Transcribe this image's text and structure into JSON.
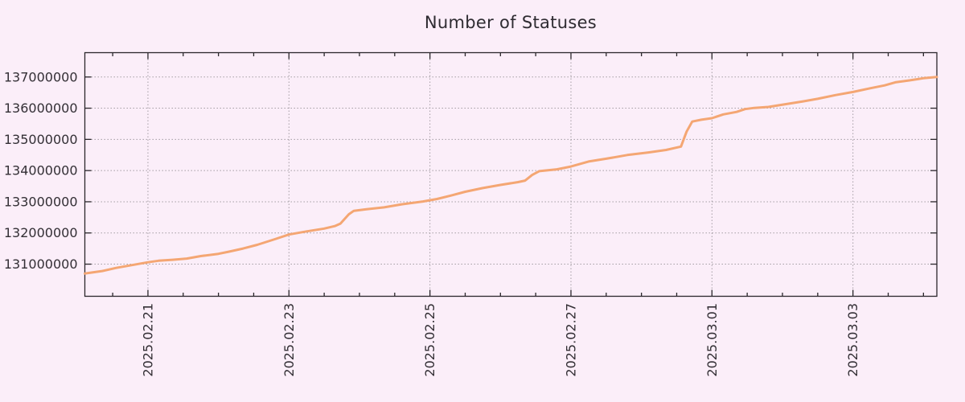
{
  "chart_data": {
    "type": "line",
    "title": "Number of Statuses",
    "grid": true,
    "legend": "none",
    "x_axis": {
      "label": "",
      "unit": "date",
      "epoch_note": "day 0 = 2025-02-20 00:00",
      "range_days": [
        0.105,
        12.19
      ],
      "major_ticks": [
        {
          "day": 1,
          "label": "2025.02.21"
        },
        {
          "day": 3,
          "label": "2025.02.23"
        },
        {
          "day": 5,
          "label": "2025.02.25"
        },
        {
          "day": 7,
          "label": "2025.02.27"
        },
        {
          "day": 9,
          "label": "2025.03.01"
        },
        {
          "day": 11,
          "label": "2025.03.03"
        }
      ],
      "minor_tick_interval_days": 0.5,
      "tick_label_rotation_deg": -90
    },
    "y_axis": {
      "label": "",
      "range": [
        129970000,
        137780000
      ],
      "major_ticks": [
        {
          "value": 131000000,
          "label": "131000000"
        },
        {
          "value": 132000000,
          "label": "132000000"
        },
        {
          "value": 133000000,
          "label": "133000000"
        },
        {
          "value": 134000000,
          "label": "134000000"
        },
        {
          "value": 135000000,
          "label": "135000000"
        },
        {
          "value": 136000000,
          "label": "136000000"
        },
        {
          "value": 137000000,
          "label": "137000000"
        }
      ]
    },
    "series": [
      {
        "name": "statuses",
        "points": [
          [
            0.105,
            130700000
          ],
          [
            0.2,
            130730000
          ],
          [
            0.35,
            130780000
          ],
          [
            0.55,
            130880000
          ],
          [
            0.8,
            130980000
          ],
          [
            1.0,
            131060000
          ],
          [
            1.15,
            131110000
          ],
          [
            1.35,
            131140000
          ],
          [
            1.55,
            131180000
          ],
          [
            1.75,
            131260000
          ],
          [
            2.0,
            131330000
          ],
          [
            2.15,
            131400000
          ],
          [
            2.35,
            131500000
          ],
          [
            2.55,
            131620000
          ],
          [
            2.8,
            131800000
          ],
          [
            3.0,
            131950000
          ],
          [
            3.25,
            132050000
          ],
          [
            3.5,
            132140000
          ],
          [
            3.65,
            132220000
          ],
          [
            3.73,
            132300000
          ],
          [
            3.85,
            132600000
          ],
          [
            3.92,
            132710000
          ],
          [
            4.1,
            132760000
          ],
          [
            4.35,
            132820000
          ],
          [
            4.6,
            132920000
          ],
          [
            4.9,
            133010000
          ],
          [
            5.1,
            133090000
          ],
          [
            5.3,
            133200000
          ],
          [
            5.5,
            133320000
          ],
          [
            5.75,
            133440000
          ],
          [
            6.0,
            133540000
          ],
          [
            6.25,
            133630000
          ],
          [
            6.35,
            133680000
          ],
          [
            6.45,
            133860000
          ],
          [
            6.55,
            133980000
          ],
          [
            6.8,
            134040000
          ],
          [
            7.0,
            134130000
          ],
          [
            7.25,
            134290000
          ],
          [
            7.5,
            134380000
          ],
          [
            7.8,
            134500000
          ],
          [
            8.1,
            134580000
          ],
          [
            8.35,
            134660000
          ],
          [
            8.56,
            134770000
          ],
          [
            8.64,
            135250000
          ],
          [
            8.72,
            135570000
          ],
          [
            8.85,
            135630000
          ],
          [
            9.0,
            135680000
          ],
          [
            9.16,
            135800000
          ],
          [
            9.35,
            135880000
          ],
          [
            9.47,
            135970000
          ],
          [
            9.6,
            136010000
          ],
          [
            9.8,
            136040000
          ],
          [
            10.05,
            136130000
          ],
          [
            10.3,
            136220000
          ],
          [
            10.5,
            136300000
          ],
          [
            10.75,
            136420000
          ],
          [
            11.0,
            136520000
          ],
          [
            11.25,
            136640000
          ],
          [
            11.45,
            136730000
          ],
          [
            11.6,
            136830000
          ],
          [
            11.8,
            136890000
          ],
          [
            12.0,
            136960000
          ],
          [
            12.19,
            137000000
          ]
        ]
      }
    ],
    "colors": {
      "line": "#f4a673",
      "background": "#fbeef9",
      "grid": "#a39da3",
      "axis": "#2b272c",
      "text": "#332f35"
    }
  }
}
